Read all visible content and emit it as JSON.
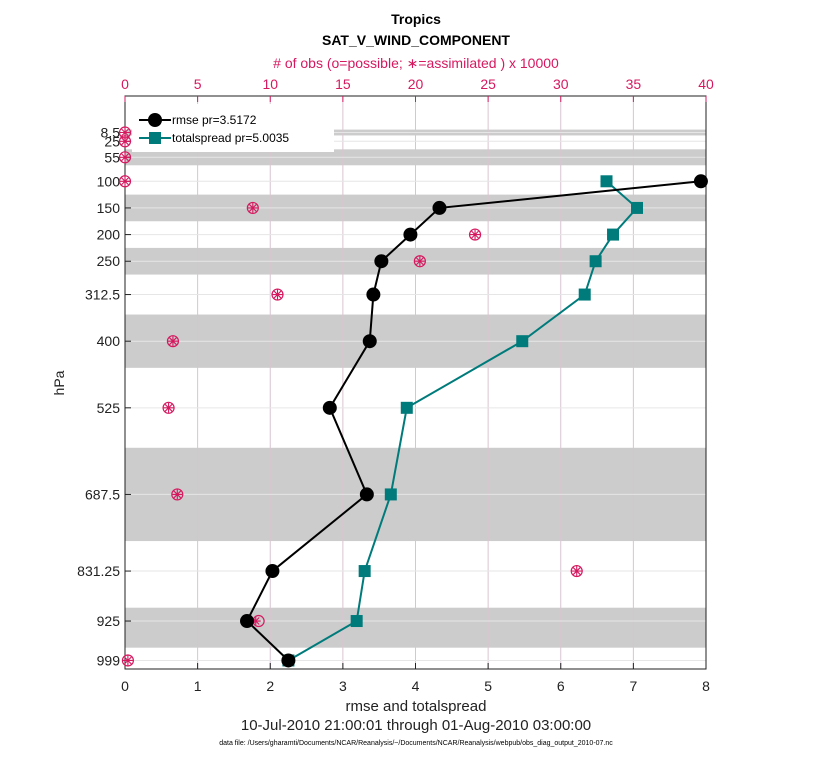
{
  "title": "Tropics",
  "subtitle": "SAT_V_WIND_COMPONENT",
  "top_axis_label": "# of obs (o=possible; ∗=assimilated ) x 10000",
  "xlabel": "rmse and totalspread",
  "ylabel": "hPa",
  "date_range": "10-Jul-2010 21:00:01 through 01-Aug-2010 03:00:00",
  "footnote": "data file: /Users/gharamti/Documents/NCAR/Reanalysis/~/Documents/NCAR/Reanalysis/webpub/obs_diag_output_2010-07.nc",
  "colors": {
    "rmse": "#000000",
    "spread": "#007b7b",
    "obs": "#d6195f",
    "band": "#cccccc",
    "grid": "#d9c4cf"
  },
  "chart_data": {
    "type": "line",
    "title": "Tropics",
    "subtitle": "SAT_V_WIND_COMPONENT",
    "xlim": [
      0,
      8
    ],
    "x_ticks": [
      0,
      1,
      2,
      3,
      4,
      5,
      6,
      7,
      8
    ],
    "x_tick_labels": [
      "0",
      "1",
      "2",
      "3",
      "4",
      "5",
      "6",
      "7",
      "8"
    ],
    "top_xlim": [
      0,
      40
    ],
    "top_ticks": [
      0,
      5,
      10,
      15,
      20,
      25,
      30,
      35,
      40
    ],
    "top_tick_labels": [
      "0",
      "5",
      "10",
      "15",
      "20",
      "25",
      "30",
      "35",
      "40"
    ],
    "levels": [
      8.5,
      25,
      55,
      100,
      150,
      200,
      250,
      312.5,
      400,
      525,
      687.5,
      831.25,
      925,
      999
    ],
    "level_labels": [
      "8.5",
      "25",
      "55",
      "100",
      "150",
      "200",
      "250",
      "312.5",
      "400",
      "525",
      "687.5",
      "831.25",
      "925",
      "999"
    ],
    "ylim_hpa": [
      -60,
      1015
    ],
    "layer_bands": [
      [
        3,
        14
      ],
      [
        40,
        70
      ],
      [
        125,
        175
      ],
      [
        225,
        275
      ],
      [
        350,
        450
      ],
      [
        600,
        775
      ],
      [
        900,
        975
      ]
    ],
    "series": [
      {
        "name": "rmse",
        "legend": "rmse pr=3.5172",
        "marker": "circle",
        "levels": [
          100,
          150,
          200,
          250,
          312.5,
          400,
          525,
          687.5,
          831.25,
          925,
          999
        ],
        "values": [
          7.93,
          4.33,
          3.93,
          3.53,
          3.42,
          3.37,
          2.82,
          3.33,
          2.03,
          1.68,
          2.25
        ]
      },
      {
        "name": "totalspread",
        "legend": "totalspread pr=5.0035",
        "marker": "square",
        "levels": [
          100,
          150,
          200,
          250,
          312.5,
          400,
          525,
          687.5,
          831.25,
          925,
          999
        ],
        "values": [
          6.63,
          7.05,
          6.72,
          6.48,
          6.33,
          5.47,
          3.88,
          3.66,
          3.3,
          3.19,
          2.25
        ]
      }
    ],
    "obs_possible": {
      "levels": [
        8.5,
        25,
        55,
        100,
        150,
        200,
        250,
        312.5,
        400,
        525,
        687.5,
        831.25,
        925,
        999
      ],
      "values": [
        0.0,
        0.0,
        0.0,
        0.0,
        8.8,
        24.1,
        20.3,
        10.5,
        3.3,
        3.0,
        3.6,
        31.1,
        9.2,
        0.2
      ]
    },
    "obs_assimilated": {
      "levels": [
        8.5,
        25,
        55,
        100,
        150,
        200,
        250,
        312.5,
        400,
        525,
        687.5,
        831.25,
        925,
        999
      ],
      "values": [
        0.0,
        0.0,
        0.0,
        0.0,
        8.8,
        24.1,
        20.3,
        10.5,
        3.3,
        3.0,
        3.6,
        31.1,
        9.0,
        0.2
      ]
    }
  }
}
